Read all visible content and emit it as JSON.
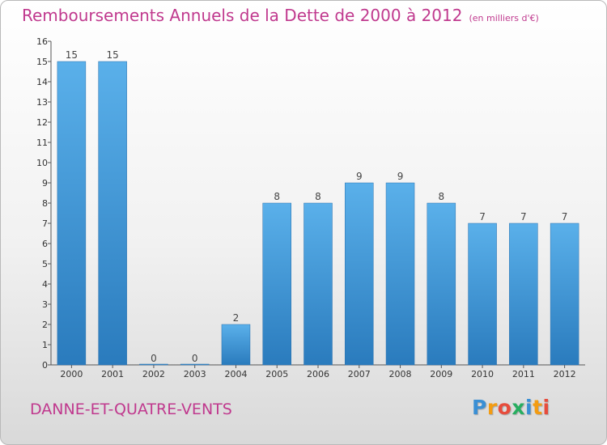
{
  "title": "Remboursements Annuels de la Dette de 2000 à 2012",
  "unit": "(en milliers d'€)",
  "commune": "DANNE-ET-QUATRE-VENTS",
  "logo": {
    "letters": [
      "P",
      "r",
      "o",
      "x",
      "i",
      "t",
      "i"
    ],
    "colors": [
      "#3a8fd4",
      "#f39c12",
      "#e74c3c",
      "#27ae60",
      "#3a8fd4",
      "#f39c12",
      "#e74c3c"
    ]
  },
  "chart_data": {
    "type": "bar",
    "categories": [
      "2000",
      "2001",
      "2002",
      "2003",
      "2004",
      "2005",
      "2006",
      "2007",
      "2008",
      "2009",
      "2010",
      "2011",
      "2012"
    ],
    "values": [
      15,
      15,
      0,
      0,
      2,
      8,
      8,
      9,
      9,
      8,
      7,
      7,
      7
    ],
    "ylim": [
      0,
      16
    ],
    "yticks": [
      0,
      1,
      2,
      3,
      4,
      5,
      6,
      7,
      8,
      9,
      10,
      11,
      12,
      13,
      14,
      15,
      16
    ],
    "bar_color": "#3a8fd4",
    "grid": false
  }
}
